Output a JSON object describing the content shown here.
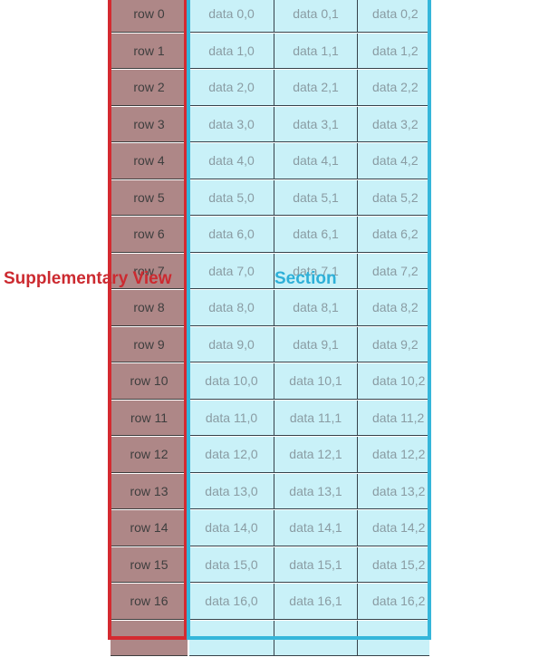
{
  "rows": [
    {
      "header": "row 0",
      "cells": [
        "data 0,0",
        "data 0,1",
        "data 0,2"
      ]
    },
    {
      "header": "row 1",
      "cells": [
        "data 1,0",
        "data 1,1",
        "data 1,2"
      ]
    },
    {
      "header": "row 2",
      "cells": [
        "data 2,0",
        "data 2,1",
        "data 2,2"
      ]
    },
    {
      "header": "row 3",
      "cells": [
        "data 3,0",
        "data 3,1",
        "data 3,2"
      ]
    },
    {
      "header": "row 4",
      "cells": [
        "data 4,0",
        "data 4,1",
        "data 4,2"
      ]
    },
    {
      "header": "row 5",
      "cells": [
        "data 5,0",
        "data 5,1",
        "data 5,2"
      ]
    },
    {
      "header": "row 6",
      "cells": [
        "data 6,0",
        "data 6,1",
        "data 6,2"
      ]
    },
    {
      "header": "row 7",
      "cells": [
        "data 7,0",
        "data 7,1",
        "data 7,2"
      ]
    },
    {
      "header": "row 8",
      "cells": [
        "data 8,0",
        "data 8,1",
        "data 8,2"
      ]
    },
    {
      "header": "row 9",
      "cells": [
        "data 9,0",
        "data 9,1",
        "data 9,2"
      ]
    },
    {
      "header": "row 10",
      "cells": [
        "data 10,0",
        "data 10,1",
        "data 10,2"
      ]
    },
    {
      "header": "row 11",
      "cells": [
        "data 11,0",
        "data 11,1",
        "data 11,2"
      ]
    },
    {
      "header": "row 12",
      "cells": [
        "data 12,0",
        "data 12,1",
        "data 12,2"
      ]
    },
    {
      "header": "row 13",
      "cells": [
        "data 13,0",
        "data 13,1",
        "data 13,2"
      ]
    },
    {
      "header": "row 14",
      "cells": [
        "data 14,0",
        "data 14,1",
        "data 14,2"
      ]
    },
    {
      "header": "row 15",
      "cells": [
        "data 15,0",
        "data 15,1",
        "data 15,2"
      ]
    },
    {
      "header": "row 16",
      "cells": [
        "data 16,0",
        "data 16,1",
        "data 16,2"
      ]
    },
    {
      "header": "",
      "cells": [
        "",
        "",
        ""
      ]
    }
  ],
  "annotations": {
    "supplementary_label": "Supplementary View",
    "section_label": "Section"
  },
  "colors": {
    "supplementary_outline": "#d42a30",
    "section_outline": "#35b6da",
    "header_fill": "#ae8787",
    "data_fill": "#c9f1f8",
    "grid_line": "#36424b"
  }
}
